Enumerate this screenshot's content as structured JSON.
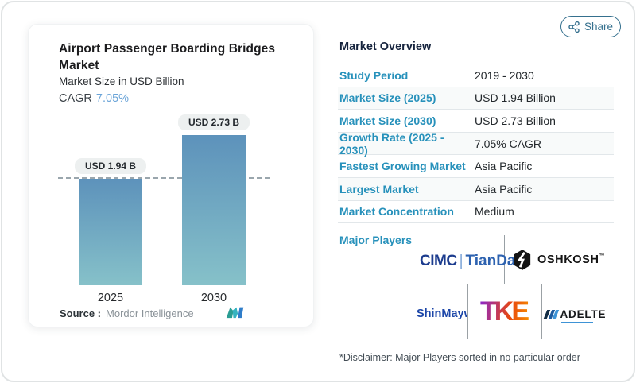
{
  "share": {
    "label": "Share"
  },
  "chart_card": {
    "title": "Airport Passenger Boarding Bridges Market",
    "subtitle": "Market Size in USD Billion",
    "cagr_label": "CAGR",
    "cagr_value": "7.05%",
    "source_label": "Source :",
    "source_value": "Mordor Intelligence"
  },
  "chart_data": {
    "type": "bar",
    "title": "Airport Passenger Boarding Bridges Market",
    "ylabel": "Market Size in USD Billion",
    "unit": "USD Billion",
    "categories": [
      "2025",
      "2030"
    ],
    "values": [
      1.94,
      2.73
    ],
    "bar_labels": [
      "USD 1.94 B",
      "USD 2.73 B"
    ],
    "cagr_percent": 7.05,
    "reference_value": 1.94,
    "ylim": [
      0,
      3.2
    ],
    "grid": "off",
    "legend": "none"
  },
  "overview": {
    "heading": "Market Overview",
    "rows": [
      {
        "label": "Study Period",
        "value": "2019 - 2030"
      },
      {
        "label": "Market Size (2025)",
        "value": "USD 1.94 Billion"
      },
      {
        "label": "Market Size (2030)",
        "value": "USD 2.73 Billion"
      },
      {
        "label": "Growth Rate (2025 - 2030)",
        "value": "7.05% CAGR"
      },
      {
        "label": "Fastest Growing Market",
        "value": "Asia Pacific"
      },
      {
        "label": "Largest Market",
        "value": "Asia Pacific"
      },
      {
        "label": "Market Concentration",
        "value": "Medium"
      }
    ],
    "major_players_label": "Major Players",
    "players": {
      "cimc_part1": "CIMC",
      "cimc_sep": "|",
      "cimc_part2": "TianDa",
      "oshkosh": "OSHKOSH",
      "oshkosh_tm": "™",
      "shinmaywa": "ShinMaywa",
      "tke": "TKE",
      "adelte": "ADELTE"
    },
    "disclaimer": "*Disclaimer: Major Players sorted in no particular order"
  },
  "colors": {
    "accent_label_blue": "#2791bb",
    "share_teal": "#35708e",
    "cagr_blue": "#6aa4d8",
    "bar_gradient_top": "#5d92bb",
    "bar_gradient_bottom": "#86c1c9",
    "reference_line_gray": "#9aa6ad",
    "cimc_navy": "#1c3c8e",
    "tianda_blue": "#2d62b0",
    "shinmaywa_blue": "#1c46a8",
    "oshkosh_black": "#141414",
    "tke_gradient": [
      "#8f28c0",
      "#e8470f",
      "#f68b00"
    ],
    "mi_logo_teal": "#2a9d93",
    "mi_logo_blue": "#2f7dc9"
  }
}
